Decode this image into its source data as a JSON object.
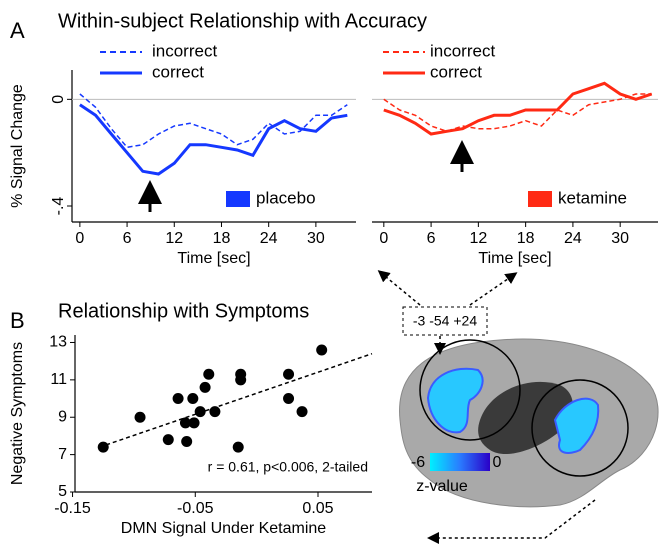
{
  "chart_data": [
    {
      "type": "line",
      "panel": "A",
      "title": "Within-subject Relationship with Accuracy",
      "ylabel": "% Signal Change",
      "xlabel": "Time [sec]",
      "condition": "placebo",
      "condition_color": "#1538ff",
      "x": [
        0,
        2,
        4,
        6,
        8,
        10,
        12,
        14,
        16,
        18,
        20,
        22,
        24,
        26,
        28,
        30,
        32,
        34
      ],
      "series": [
        {
          "name": "incorrect",
          "color": "#1538ff",
          "dashed": true,
          "values": [
            0.02,
            -0.03,
            -0.11,
            -0.18,
            -0.17,
            -0.13,
            -0.1,
            -0.09,
            -0.11,
            -0.13,
            -0.17,
            -0.15,
            -0.09,
            -0.13,
            -0.12,
            -0.06,
            -0.06,
            -0.02
          ]
        },
        {
          "name": "correct",
          "color": "#1538ff",
          "dashed": false,
          "values": [
            -0.02,
            -0.06,
            -0.13,
            -0.2,
            -0.27,
            -0.28,
            -0.24,
            -0.17,
            -0.17,
            -0.18,
            -0.19,
            -0.21,
            -0.11,
            -0.08,
            -0.11,
            -0.12,
            -0.07,
            -0.06
          ]
        }
      ],
      "xlim": [
        -1,
        35.1
      ],
      "xticks": [
        0,
        6,
        12,
        18,
        24,
        30
      ],
      "ylim": [
        -0.46,
        0.11
      ],
      "yticks": [
        0,
        {
          "value": -0.4,
          "label": "-.4"
        }
      ]
    },
    {
      "type": "line",
      "xlabel": "Time [sec]",
      "condition": "ketamine",
      "condition_color": "#ff2a14",
      "x": [
        0,
        2,
        4,
        6,
        8,
        10,
        12,
        14,
        16,
        18,
        20,
        22,
        24,
        26,
        28,
        30,
        32,
        34
      ],
      "series": [
        {
          "name": "incorrect",
          "color": "#ff2a14",
          "dashed": true,
          "values": [
            0.0,
            -0.04,
            -0.06,
            -0.1,
            -0.12,
            -0.1,
            -0.11,
            -0.11,
            -0.1,
            -0.08,
            -0.1,
            -0.04,
            -0.06,
            -0.02,
            -0.01,
            0.0,
            0.02,
            0.02
          ]
        },
        {
          "name": "correct",
          "color": "#ff2a14",
          "dashed": false,
          "values": [
            -0.04,
            -0.06,
            -0.09,
            -0.13,
            -0.12,
            -0.11,
            -0.08,
            -0.06,
            -0.06,
            -0.04,
            -0.04,
            -0.04,
            0.02,
            0.04,
            0.06,
            0.02,
            0.0,
            0.02
          ]
        }
      ],
      "xlim": [
        -1.5,
        34.8
      ],
      "xticks": [
        0,
        6,
        12,
        18,
        24,
        30
      ],
      "ylim": [
        -0.46,
        0.11
      ]
    },
    {
      "type": "scatter",
      "panel": "B",
      "title": "Relationship with Symptoms",
      "xlabel": "DMN Signal Under Ketamine",
      "ylabel": "Negative Symptoms",
      "annotation": "r = 0.61, p<0.006, 2-tailed",
      "color": "#000000",
      "x": [
        -0.125,
        -0.095,
        -0.072,
        -0.064,
        -0.058,
        -0.057,
        -0.052,
        -0.051,
        -0.046,
        -0.042,
        -0.039,
        -0.034,
        -0.015,
        -0.013,
        -0.013,
        0.026,
        0.026,
        0.037,
        0.053
      ],
      "values": [
        7.4,
        9.0,
        7.8,
        10.0,
        8.7,
        7.7,
        10.0,
        8.7,
        9.3,
        10.6,
        11.3,
        9.3,
        7.4,
        11.0,
        11.3,
        11.3,
        10.0,
        9.3,
        12.6
      ],
      "fit": {
        "x": [
          -0.128,
          0.094
        ],
        "y": [
          7.4,
          12.4
        ]
      },
      "xlim": [
        -0.148,
        0.094
      ],
      "xticks": [
        -0.15,
        -0.05,
        0.05
      ],
      "ylim": [
        5,
        13.4
      ],
      "yticks": [
        5,
        7,
        9,
        11,
        13
      ]
    }
  ],
  "brain_map": {
    "coordinates": "-3 -54 +24",
    "colorbar": {
      "ticks": [
        -6,
        0
      ],
      "label": "z-value"
    }
  }
}
